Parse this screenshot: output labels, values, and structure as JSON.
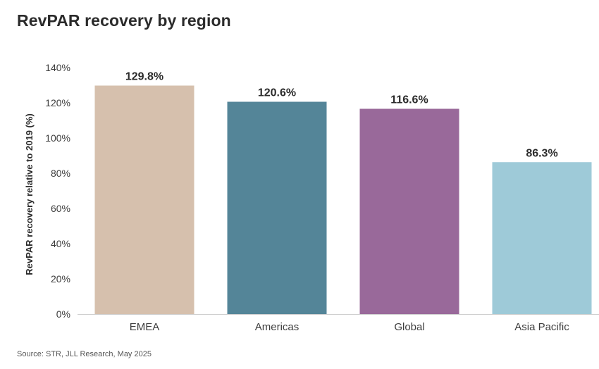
{
  "chart_data": {
    "type": "bar",
    "title": "RevPAR recovery by region",
    "xlabel": "",
    "ylabel": "RevPAR recovery relative to 2019 (%)",
    "categories": [
      "EMEA",
      "Americas",
      "Global",
      "Asia Pacific"
    ],
    "values": [
      129.8,
      120.6,
      116.6,
      86.3
    ],
    "data_labels": [
      "129.8%",
      "120.6%",
      "116.6%",
      "86.3%"
    ],
    "colors": [
      "#d6c0ad",
      "#548598",
      "#99699a",
      "#9ecad8"
    ],
    "ylim": [
      0,
      140
    ],
    "yticks": [
      0,
      20,
      40,
      60,
      80,
      100,
      120,
      140
    ],
    "ytick_labels": [
      "0%",
      "20%",
      "40%",
      "60%",
      "80%",
      "100%",
      "120%",
      "140%"
    ],
    "grid": false,
    "legend": "none"
  },
  "source": "Source: STR, JLL Research, May 2025"
}
